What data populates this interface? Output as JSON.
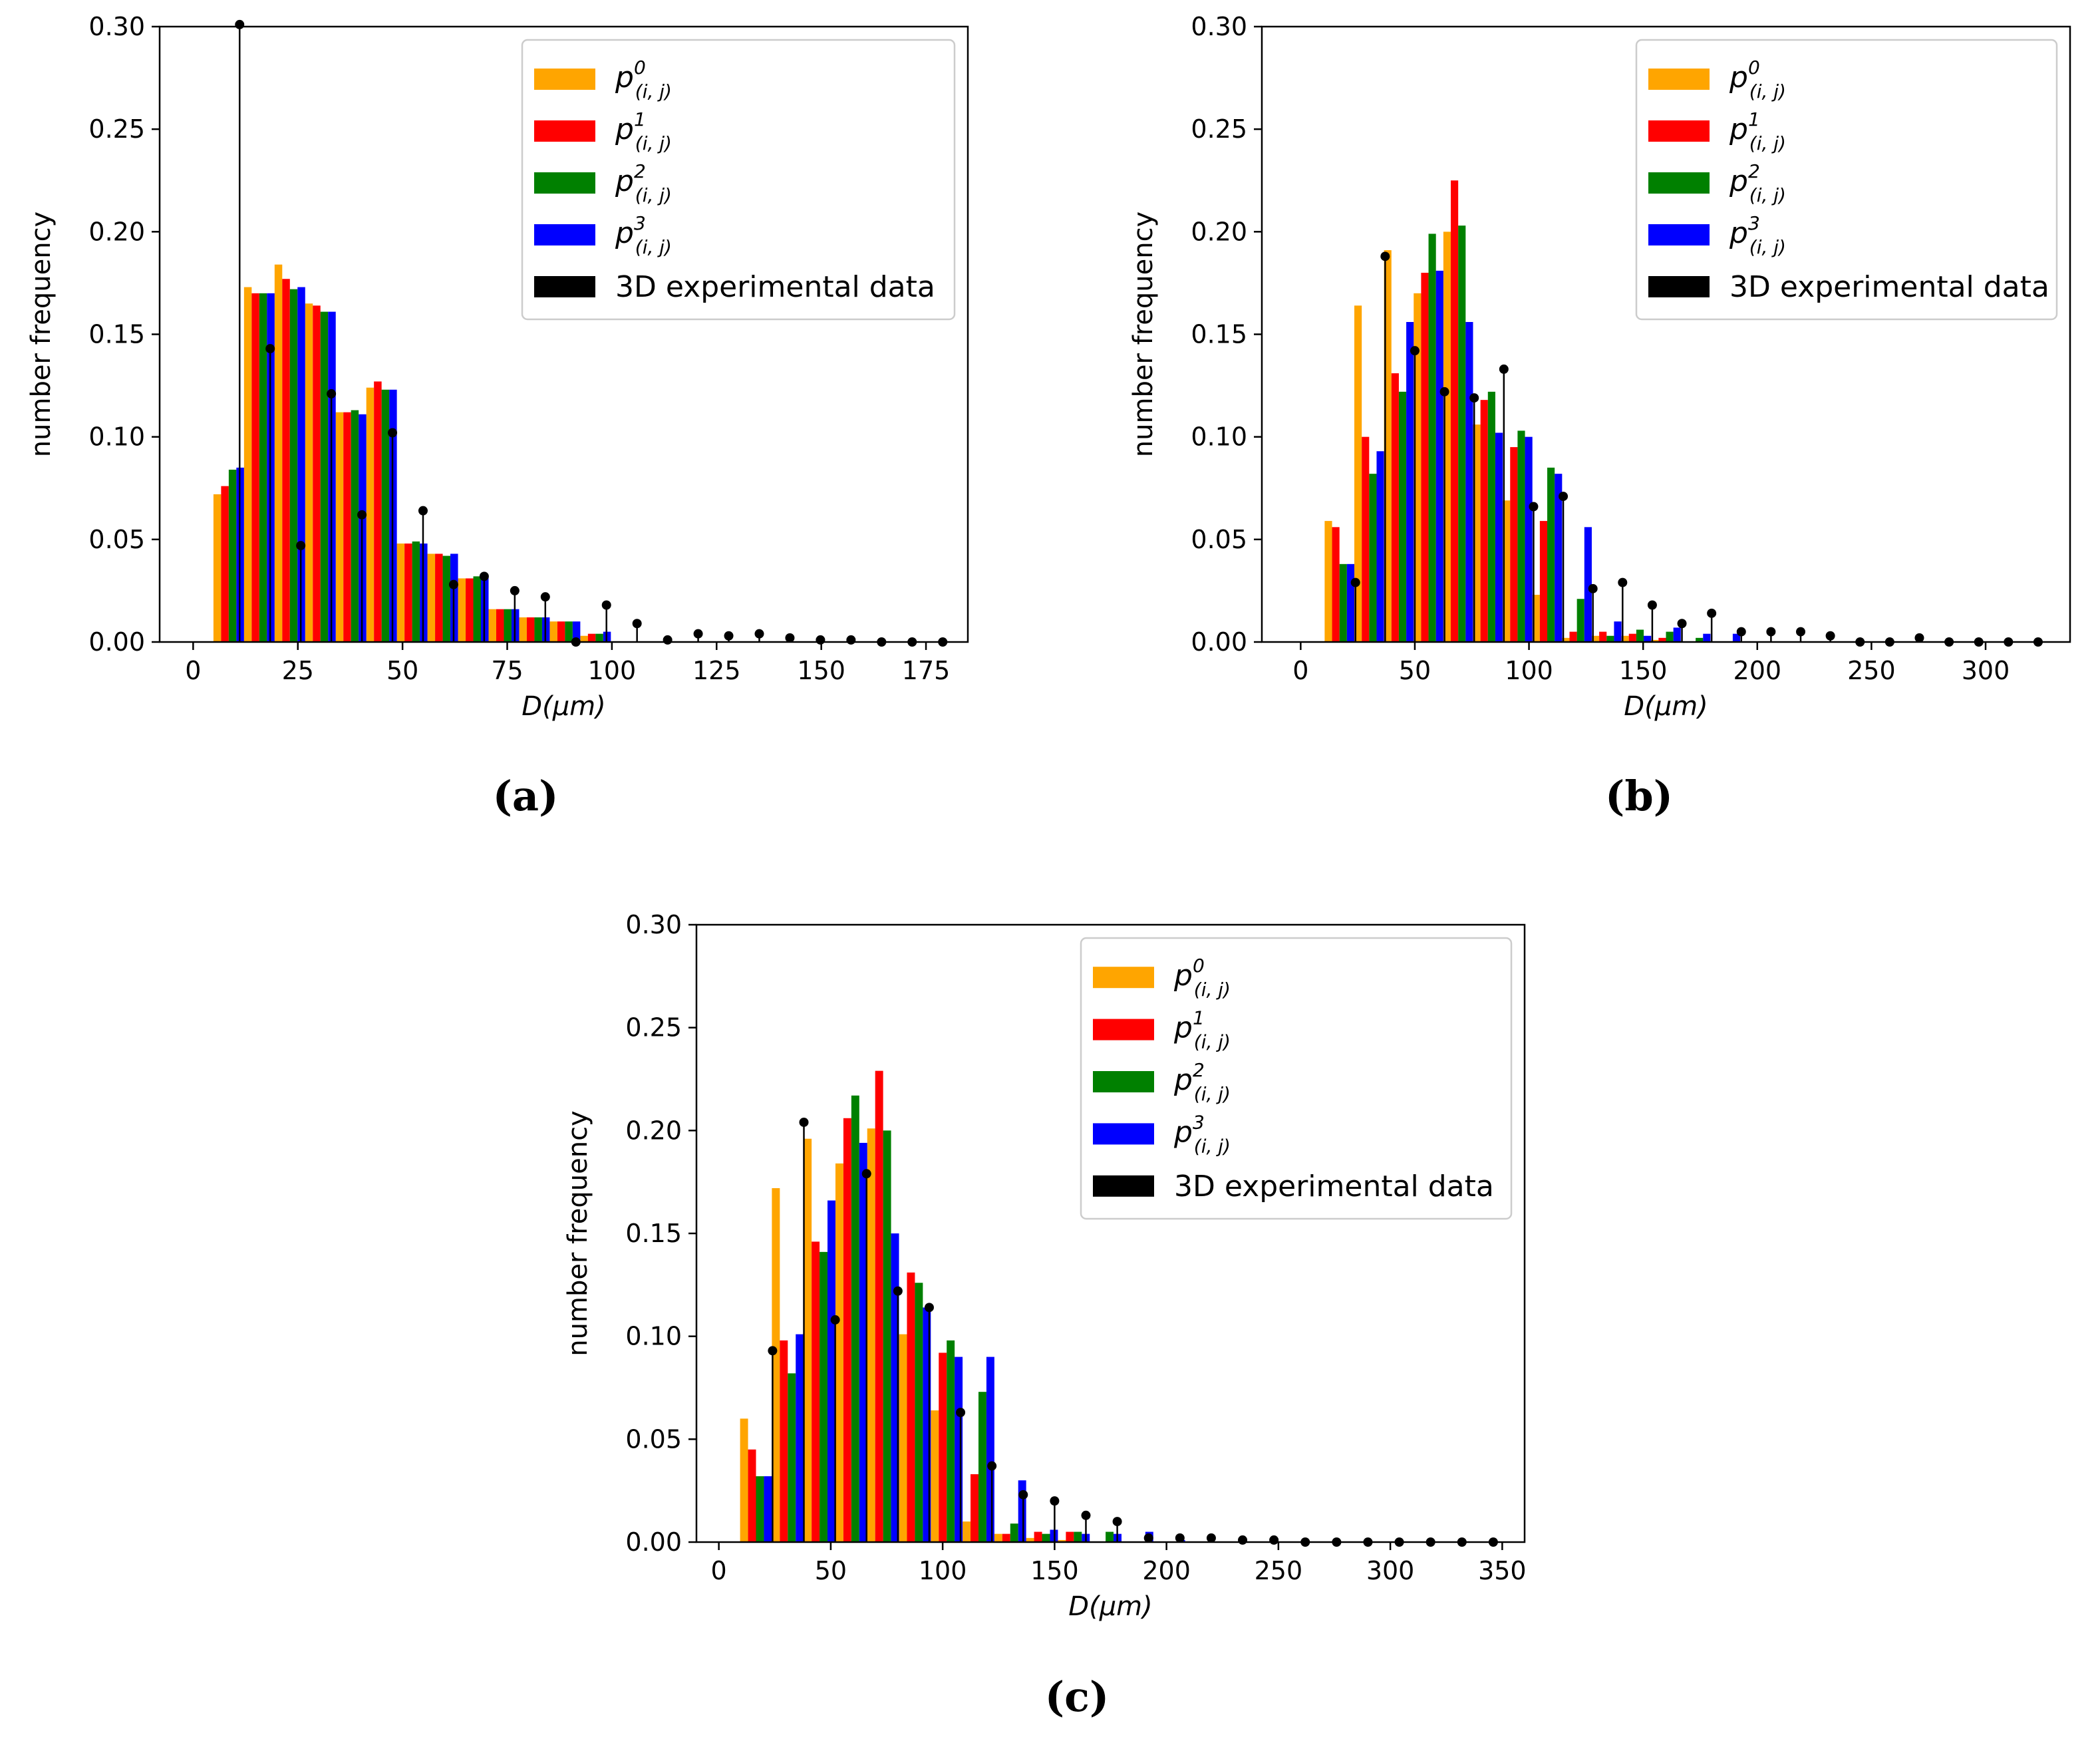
{
  "chart_data": [
    {
      "type": "bar",
      "panel_label": "(a)",
      "xlabel": "D(μm)",
      "ylabel": "number frequency",
      "xlim": [
        -8,
        185
      ],
      "ylim": [
        0,
        0.3
      ],
      "xticks": [
        0,
        25,
        50,
        75,
        100,
        125,
        150,
        175
      ],
      "yticks": [
        "0.00",
        "0.05",
        "0.10",
        "0.15",
        "0.20",
        "0.25",
        "0.30"
      ],
      "legend_position": "top-right",
      "bin_width": 7.3,
      "x": [
        8.5,
        15.8,
        23.1,
        30.4,
        37.7,
        45.0,
        52.3,
        59.6,
        66.9,
        74.2,
        81.5,
        88.8,
        96.1
      ],
      "series": [
        {
          "name": "p0",
          "color": "#FFA500",
          "values": [
            0.072,
            0.173,
            0.184,
            0.165,
            0.112,
            0.124,
            0.048,
            0.043,
            0.031,
            0.016,
            0.012,
            0.01,
            0.003
          ]
        },
        {
          "name": "p1",
          "color": "#FF0000",
          "values": [
            0.076,
            0.17,
            0.177,
            0.164,
            0.112,
            0.127,
            0.048,
            0.043,
            0.031,
            0.016,
            0.012,
            0.01,
            0.004
          ]
        },
        {
          "name": "p2",
          "color": "#008000",
          "values": [
            0.084,
            0.17,
            0.172,
            0.161,
            0.113,
            0.123,
            0.049,
            0.042,
            0.032,
            0.016,
            0.012,
            0.01,
            0.004
          ]
        },
        {
          "name": "p3",
          "color": "#0000FF",
          "values": [
            0.085,
            0.17,
            0.173,
            0.161,
            0.111,
            0.123,
            0.048,
            0.043,
            0.032,
            0.016,
            0.012,
            0.01,
            0.005
          ]
        }
      ],
      "experimental": {
        "name": "3D experimental data",
        "x": [
          11.1,
          18.4,
          25.7,
          33.0,
          40.3,
          47.6,
          54.9,
          62.2,
          69.5,
          76.8,
          84.1,
          91.4,
          98.7,
          106.0,
          113.3,
          120.6,
          127.9,
          135.2,
          142.5,
          149.8,
          157.1,
          164.4,
          171.7,
          179.0
        ],
        "values": [
          0.301,
          0.143,
          0.047,
          0.121,
          0.062,
          0.102,
          0.064,
          0.028,
          0.032,
          0.025,
          0.022,
          0.0,
          0.018,
          0.009,
          0.001,
          0.004,
          0.003,
          0.004,
          0.002,
          0.001,
          0.001,
          0.0,
          0.0,
          0.0
        ]
      },
      "legend": [
        "p0",
        "p1",
        "p2",
        "p3",
        "3D experimental data"
      ]
    },
    {
      "type": "bar",
      "panel_label": "(b)",
      "xlabel": "D(μm)",
      "ylabel": "number frequency",
      "xlim": [
        -17,
        337
      ],
      "ylim": [
        0,
        0.3
      ],
      "xticks": [
        0,
        50,
        100,
        150,
        200,
        250,
        300
      ],
      "yticks": [
        "0.00",
        "0.05",
        "0.10",
        "0.15",
        "0.20",
        "0.25",
        "0.30"
      ],
      "legend_position": "top-right",
      "bin_width": 13.0,
      "x": [
        17,
        30,
        43,
        56,
        69,
        82,
        95,
        108,
        121,
        134,
        147,
        160,
        173,
        186,
        199,
        212,
        225
      ],
      "series": [
        {
          "name": "p0",
          "color": "#FFA500",
          "values": [
            0.059,
            0.164,
            0.191,
            0.17,
            0.2,
            0.106,
            0.069,
            0.023,
            0.002,
            0.003,
            0.003,
            0.001,
            0.0,
            0.0,
            0.0,
            0.0,
            0.0
          ]
        },
        {
          "name": "p1",
          "color": "#FF0000",
          "values": [
            0.056,
            0.1,
            0.131,
            0.18,
            0.225,
            0.118,
            0.095,
            0.059,
            0.005,
            0.005,
            0.004,
            0.002,
            0.0,
            0.0,
            0.0,
            0.0,
            0.0
          ]
        },
        {
          "name": "p2",
          "color": "#008000",
          "values": [
            0.038,
            0.082,
            0.122,
            0.199,
            0.203,
            0.122,
            0.103,
            0.085,
            0.021,
            0.003,
            0.006,
            0.005,
            0.002,
            0.0,
            0.0,
            0.0,
            0.0
          ]
        },
        {
          "name": "p3",
          "color": "#0000FF",
          "values": [
            0.038,
            0.093,
            0.156,
            0.181,
            0.156,
            0.102,
            0.1,
            0.082,
            0.056,
            0.01,
            0.003,
            0.007,
            0.004,
            0.004,
            0.0,
            0.0,
            0.0
          ]
        }
      ],
      "experimental": {
        "name": "3D experimental data",
        "x": [
          24,
          37,
          50,
          63,
          76,
          89,
          102,
          115,
          128,
          141,
          154,
          167,
          180,
          193,
          206,
          219,
          232,
          245,
          258,
          271,
          284,
          297,
          310,
          323
        ],
        "values": [
          0.029,
          0.188,
          0.142,
          0.122,
          0.119,
          0.133,
          0.066,
          0.071,
          0.026,
          0.029,
          0.018,
          0.009,
          0.014,
          0.005,
          0.005,
          0.005,
          0.003,
          0.0,
          0.0,
          0.002,
          0.0,
          0.0,
          0.0,
          0.0
        ]
      },
      "legend": [
        "p0",
        "p1",
        "p2",
        "p3",
        "3D experimental data"
      ]
    },
    {
      "type": "bar",
      "panel_label": "(c)",
      "xlabel": "D(μm)",
      "ylabel": "number frequency",
      "xlim": [
        -10,
        360
      ],
      "ylim": [
        0,
        0.3
      ],
      "xticks": [
        0,
        50,
        100,
        150,
        200,
        250,
        300,
        350
      ],
      "yticks": [
        "0.00",
        "0.05",
        "0.10",
        "0.15",
        "0.20",
        "0.25",
        "0.30"
      ],
      "legend_position": "top-right",
      "bin_width": 14.2,
      "x": [
        16.6,
        30.8,
        45.0,
        59.2,
        73.4,
        87.6,
        101.8,
        116.0,
        130.2,
        144.4,
        158.6,
        172.8,
        187.0,
        201.2
      ],
      "series": [
        {
          "name": "p0",
          "color": "#FFA500",
          "values": [
            0.06,
            0.172,
            0.196,
            0.184,
            0.201,
            0.101,
            0.064,
            0.01,
            0.004,
            0.002,
            0.001,
            0.0,
            0.0,
            0.0
          ]
        },
        {
          "name": "p1",
          "color": "#FF0000",
          "values": [
            0.045,
            0.098,
            0.146,
            0.206,
            0.229,
            0.131,
            0.092,
            0.033,
            0.004,
            0.005,
            0.005,
            0.0,
            0.0,
            0.0
          ]
        },
        {
          "name": "p2",
          "color": "#008000",
          "values": [
            0.032,
            0.082,
            0.141,
            0.217,
            0.2,
            0.126,
            0.098,
            0.073,
            0.009,
            0.004,
            0.005,
            0.005,
            0.0,
            0.0
          ]
        },
        {
          "name": "p3",
          "color": "#0000FF",
          "values": [
            0.032,
            0.101,
            0.166,
            0.194,
            0.15,
            0.114,
            0.09,
            0.09,
            0.03,
            0.006,
            0.004,
            0.004,
            0.005,
            0.001
          ]
        }
      ],
      "experimental": {
        "name": "3D experimental data",
        "x": [
          24,
          38,
          52,
          66,
          80,
          94,
          108,
          122,
          136,
          150,
          164,
          178,
          192,
          206,
          220,
          234,
          248,
          262,
          276,
          290,
          304,
          318,
          332,
          346
        ],
        "values": [
          0.093,
          0.204,
          0.108,
          0.179,
          0.122,
          0.114,
          0.063,
          0.037,
          0.023,
          0.02,
          0.013,
          0.01,
          0.002,
          0.002,
          0.002,
          0.001,
          0.001,
          0.0,
          0.0,
          0.0,
          0.0,
          0.0,
          0.0,
          0.0
        ]
      },
      "legend": [
        "p0",
        "p1",
        "p2",
        "p3",
        "3D experimental data"
      ]
    }
  ]
}
